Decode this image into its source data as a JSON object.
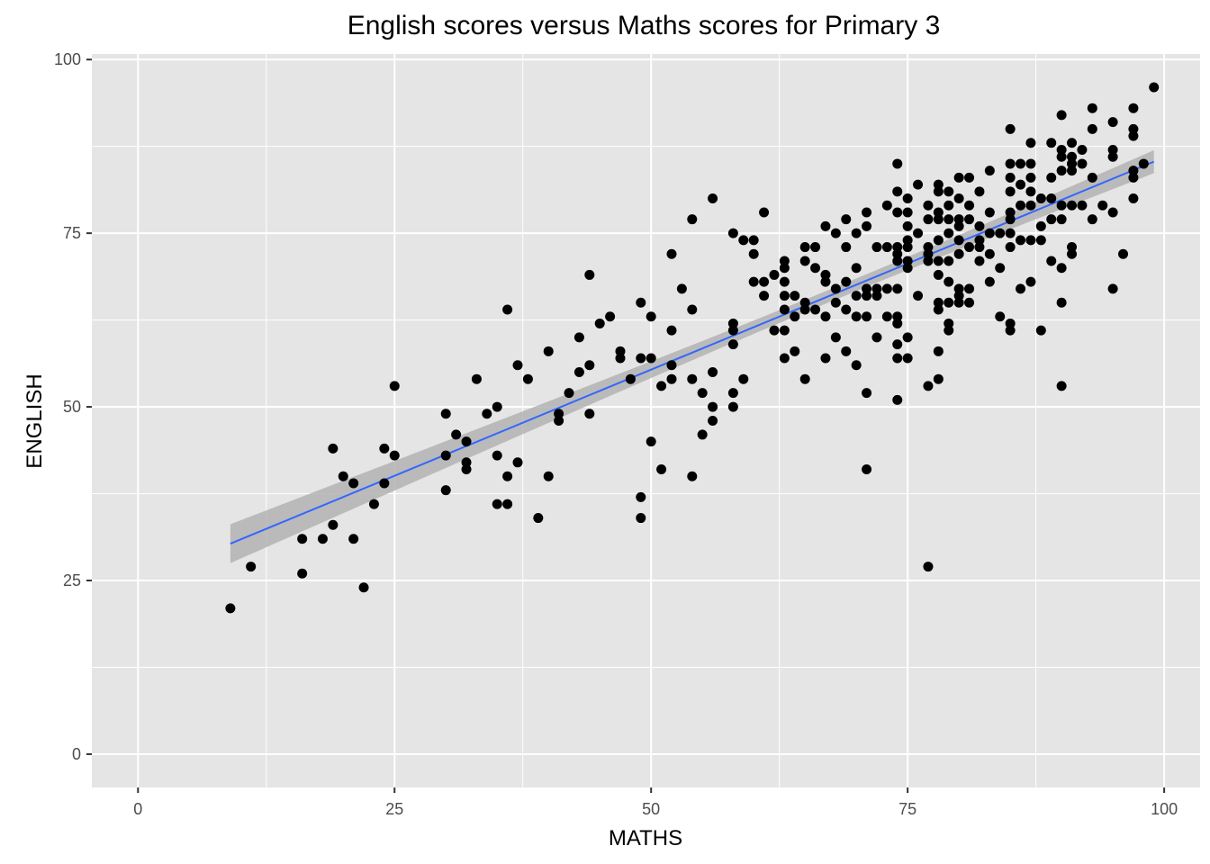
{
  "chart_data": {
    "type": "scatter",
    "title": "English scores versus Maths scores for Primary 3",
    "xlabel": "MATHS",
    "ylabel": "ENGLISH",
    "xlim": [
      -4.5,
      103.5
    ],
    "ylim": [
      -4.8,
      100.8
    ],
    "x_ticks": [
      0,
      25,
      50,
      75,
      100
    ],
    "y_ticks": [
      0,
      25,
      50,
      75,
      100
    ],
    "grid": true,
    "colors": {
      "panel_background": "#e5e5e5",
      "grid": "#ffffff",
      "points": "#000000",
      "fit_line": "#3366ff",
      "confidence_band": "#b3b3b3"
    },
    "regression": {
      "x_range": [
        9,
        99
      ],
      "y_at_start": 30.3,
      "y_at_end": 85.3,
      "band_half_width_at_ends": 2.8,
      "band_half_width_at_mean": 0.9,
      "x_mean": 68
    },
    "points": [
      [
        9,
        21
      ],
      [
        11,
        27
      ],
      [
        16,
        26
      ],
      [
        16,
        31
      ],
      [
        18,
        31
      ],
      [
        19,
        33
      ],
      [
        19,
        44
      ],
      [
        20,
        40
      ],
      [
        21,
        39
      ],
      [
        21,
        31
      ],
      [
        22,
        24
      ],
      [
        23,
        36
      ],
      [
        24,
        44
      ],
      [
        24,
        39
      ],
      [
        25,
        43
      ],
      [
        25,
        53
      ],
      [
        30,
        49
      ],
      [
        30,
        43
      ],
      [
        30,
        38
      ],
      [
        31,
        46
      ],
      [
        32,
        45
      ],
      [
        32,
        42
      ],
      [
        32,
        41
      ],
      [
        33,
        54
      ],
      [
        34,
        49
      ],
      [
        35,
        50
      ],
      [
        35,
        43
      ],
      [
        35,
        36
      ],
      [
        36,
        36
      ],
      [
        36,
        40
      ],
      [
        36,
        64
      ],
      [
        37,
        56
      ],
      [
        37,
        42
      ],
      [
        38,
        54
      ],
      [
        39,
        34
      ],
      [
        40,
        58
      ],
      [
        40,
        40
      ],
      [
        41,
        49
      ],
      [
        41,
        48
      ],
      [
        42,
        52
      ],
      [
        43,
        60
      ],
      [
        43,
        55
      ],
      [
        44,
        69
      ],
      [
        44,
        56
      ],
      [
        44,
        49
      ],
      [
        45,
        62
      ],
      [
        46,
        63
      ],
      [
        47,
        58
      ],
      [
        47,
        57
      ],
      [
        48,
        54
      ],
      [
        49,
        65
      ],
      [
        49,
        57
      ],
      [
        49,
        37
      ],
      [
        49,
        34
      ],
      [
        50,
        63
      ],
      [
        50,
        57
      ],
      [
        50,
        45
      ],
      [
        51,
        53
      ],
      [
        51,
        41
      ],
      [
        52,
        72
      ],
      [
        52,
        61
      ],
      [
        52,
        56
      ],
      [
        52,
        54
      ],
      [
        53,
        67
      ],
      [
        54,
        77
      ],
      [
        54,
        64
      ],
      [
        54,
        54
      ],
      [
        54,
        40
      ],
      [
        55,
        52
      ],
      [
        55,
        46
      ],
      [
        56,
        80
      ],
      [
        56,
        55
      ],
      [
        56,
        50
      ],
      [
        56,
        48
      ],
      [
        58,
        75
      ],
      [
        58,
        62
      ],
      [
        58,
        61
      ],
      [
        58,
        59
      ],
      [
        58,
        52
      ],
      [
        58,
        50
      ],
      [
        59,
        74
      ],
      [
        59,
        54
      ],
      [
        60,
        74
      ],
      [
        60,
        72
      ],
      [
        60,
        68
      ],
      [
        61,
        78
      ],
      [
        61,
        68
      ],
      [
        61,
        66
      ],
      [
        62,
        69
      ],
      [
        62,
        61
      ],
      [
        63,
        71
      ],
      [
        63,
        70
      ],
      [
        63,
        68
      ],
      [
        63,
        66
      ],
      [
        63,
        64
      ],
      [
        63,
        61
      ],
      [
        63,
        57
      ],
      [
        64,
        66
      ],
      [
        64,
        63
      ],
      [
        64,
        58
      ],
      [
        65,
        73
      ],
      [
        65,
        71
      ],
      [
        65,
        65
      ],
      [
        65,
        64
      ],
      [
        65,
        54
      ],
      [
        66,
        73
      ],
      [
        66,
        70
      ],
      [
        66,
        64
      ],
      [
        67,
        76
      ],
      [
        67,
        69
      ],
      [
        67,
        68
      ],
      [
        67,
        63
      ],
      [
        67,
        57
      ],
      [
        68,
        75
      ],
      [
        68,
        67
      ],
      [
        68,
        65
      ],
      [
        68,
        60
      ],
      [
        69,
        77
      ],
      [
        69,
        73
      ],
      [
        69,
        68
      ],
      [
        69,
        64
      ],
      [
        69,
        58
      ],
      [
        70,
        75
      ],
      [
        70,
        70
      ],
      [
        70,
        66
      ],
      [
        70,
        63
      ],
      [
        70,
        56
      ],
      [
        71,
        78
      ],
      [
        71,
        76
      ],
      [
        71,
        67
      ],
      [
        71,
        66
      ],
      [
        71,
        63
      ],
      [
        71,
        52
      ],
      [
        71,
        41
      ],
      [
        72,
        73
      ],
      [
        72,
        67
      ],
      [
        72,
        66
      ],
      [
        72,
        60
      ],
      [
        73,
        79
      ],
      [
        73,
        73
      ],
      [
        73,
        67
      ],
      [
        73,
        63
      ],
      [
        74,
        85
      ],
      [
        74,
        81
      ],
      [
        74,
        78
      ],
      [
        74,
        73
      ],
      [
        74,
        72
      ],
      [
        74,
        71
      ],
      [
        74,
        67
      ],
      [
        74,
        63
      ],
      [
        74,
        62
      ],
      [
        74,
        59
      ],
      [
        74,
        57
      ],
      [
        74,
        51
      ],
      [
        75,
        80
      ],
      [
        75,
        78
      ],
      [
        75,
        76
      ],
      [
        75,
        74
      ],
      [
        75,
        73
      ],
      [
        75,
        71
      ],
      [
        75,
        70
      ],
      [
        75,
        60
      ],
      [
        75,
        57
      ],
      [
        76,
        82
      ],
      [
        76,
        75
      ],
      [
        76,
        66
      ],
      [
        77,
        79
      ],
      [
        77,
        77
      ],
      [
        77,
        73
      ],
      [
        77,
        72
      ],
      [
        77,
        71
      ],
      [
        77,
        53
      ],
      [
        77,
        27
      ],
      [
        78,
        82
      ],
      [
        78,
        81
      ],
      [
        78,
        78
      ],
      [
        78,
        77
      ],
      [
        78,
        74
      ],
      [
        78,
        71
      ],
      [
        78,
        69
      ],
      [
        78,
        65
      ],
      [
        78,
        64
      ],
      [
        78,
        58
      ],
      [
        78,
        54
      ],
      [
        79,
        81
      ],
      [
        79,
        79
      ],
      [
        79,
        77
      ],
      [
        79,
        75
      ],
      [
        79,
        71
      ],
      [
        79,
        68
      ],
      [
        79,
        65
      ],
      [
        79,
        62
      ],
      [
        79,
        61
      ],
      [
        80,
        83
      ],
      [
        80,
        80
      ],
      [
        80,
        77
      ],
      [
        80,
        76
      ],
      [
        80,
        74
      ],
      [
        80,
        72
      ],
      [
        80,
        67
      ],
      [
        80,
        66
      ],
      [
        80,
        65
      ],
      [
        81,
        83
      ],
      [
        81,
        79
      ],
      [
        81,
        77
      ],
      [
        81,
        73
      ],
      [
        81,
        67
      ],
      [
        81,
        65
      ],
      [
        82,
        81
      ],
      [
        82,
        76
      ],
      [
        82,
        74
      ],
      [
        82,
        73
      ],
      [
        82,
        71
      ],
      [
        83,
        84
      ],
      [
        83,
        78
      ],
      [
        83,
        75
      ],
      [
        83,
        72
      ],
      [
        83,
        68
      ],
      [
        84,
        75
      ],
      [
        84,
        70
      ],
      [
        84,
        63
      ],
      [
        85,
        90
      ],
      [
        85,
        85
      ],
      [
        85,
        83
      ],
      [
        85,
        81
      ],
      [
        85,
        78
      ],
      [
        85,
        77
      ],
      [
        85,
        75
      ],
      [
        85,
        73
      ],
      [
        85,
        62
      ],
      [
        85,
        61
      ],
      [
        86,
        85
      ],
      [
        86,
        82
      ],
      [
        86,
        79
      ],
      [
        86,
        74
      ],
      [
        86,
        67
      ],
      [
        87,
        88
      ],
      [
        87,
        85
      ],
      [
        87,
        83
      ],
      [
        87,
        81
      ],
      [
        87,
        79
      ],
      [
        87,
        74
      ],
      [
        87,
        68
      ],
      [
        88,
        80
      ],
      [
        88,
        76
      ],
      [
        88,
        74
      ],
      [
        88,
        61
      ],
      [
        89,
        88
      ],
      [
        89,
        83
      ],
      [
        89,
        80
      ],
      [
        89,
        77
      ],
      [
        89,
        71
      ],
      [
        90,
        92
      ],
      [
        90,
        87
      ],
      [
        90,
        86
      ],
      [
        90,
        84
      ],
      [
        90,
        79
      ],
      [
        90,
        77
      ],
      [
        90,
        70
      ],
      [
        90,
        65
      ],
      [
        90,
        53
      ],
      [
        91,
        88
      ],
      [
        91,
        86
      ],
      [
        91,
        85
      ],
      [
        91,
        84
      ],
      [
        91,
        79
      ],
      [
        91,
        73
      ],
      [
        91,
        72
      ],
      [
        92,
        87
      ],
      [
        92,
        85
      ],
      [
        92,
        79
      ],
      [
        93,
        93
      ],
      [
        93,
        90
      ],
      [
        93,
        83
      ],
      [
        93,
        77
      ],
      [
        94,
        79
      ],
      [
        95,
        91
      ],
      [
        95,
        87
      ],
      [
        95,
        86
      ],
      [
        95,
        78
      ],
      [
        95,
        67
      ],
      [
        96,
        72
      ],
      [
        97,
        93
      ],
      [
        97,
        90
      ],
      [
        97,
        89
      ],
      [
        97,
        84
      ],
      [
        97,
        83
      ],
      [
        97,
        80
      ],
      [
        98,
        85
      ],
      [
        99,
        96
      ]
    ]
  }
}
